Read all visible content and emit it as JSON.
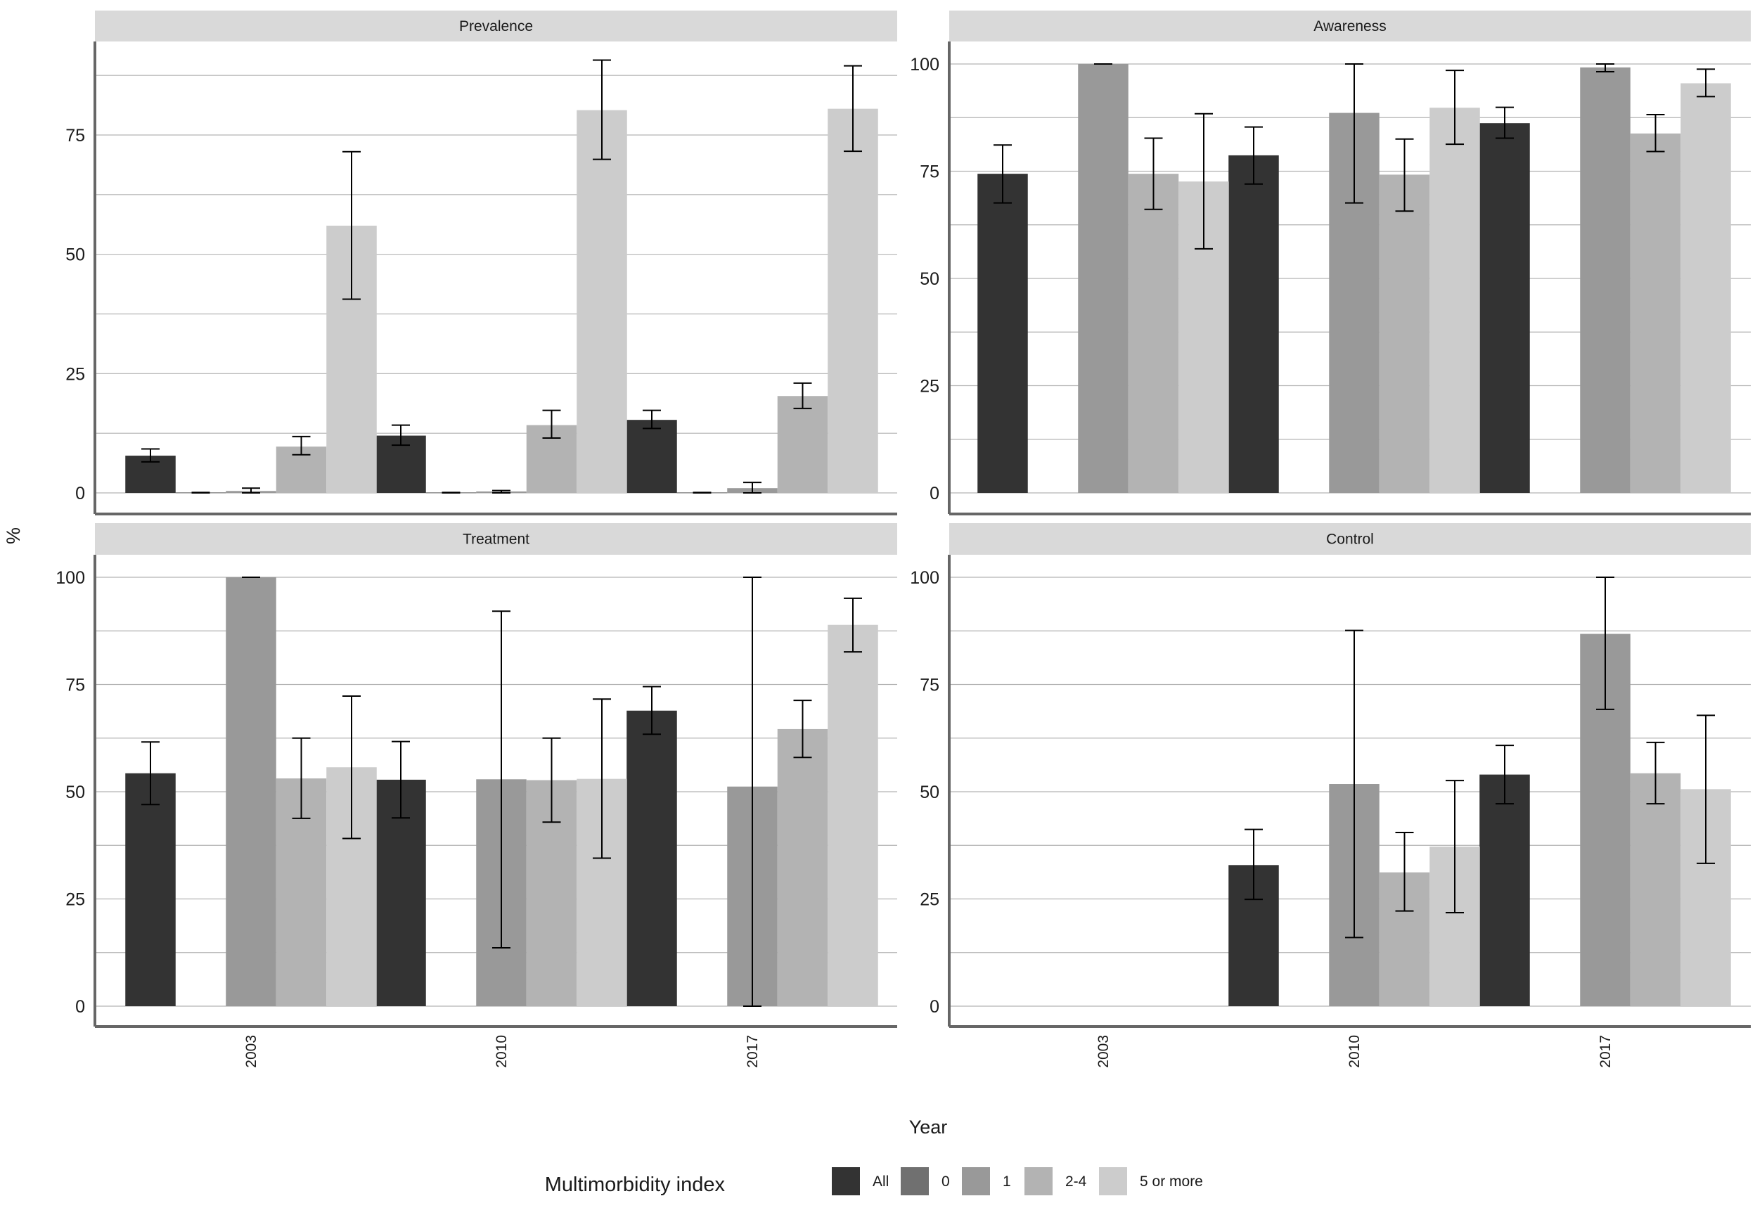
{
  "chart_data": [
    {
      "type": "bar",
      "title": "Prevalence",
      "categories": [
        "2003",
        "2010",
        "2017"
      ],
      "ylim": [
        0,
        95
      ],
      "yticks": [
        0,
        25,
        50,
        75
      ],
      "series": [
        {
          "name": "All",
          "values": [
            7.8,
            12.0,
            15.3
          ],
          "ci_low": [
            6.5,
            10.0,
            13.5
          ],
          "ci_high": [
            9.2,
            14.2,
            17.3
          ]
        },
        {
          "name": "0",
          "values": [
            0.1,
            0.1,
            0.1
          ],
          "ci_low": [
            0,
            0,
            0
          ],
          "ci_high": [
            0.1,
            0.1,
            0.1
          ]
        },
        {
          "name": "1",
          "values": [
            0.4,
            0.3,
            1.0
          ],
          "ci_low": [
            0,
            0,
            0
          ],
          "ci_high": [
            1.0,
            0.5,
            2.2
          ]
        },
        {
          "name": "2-4",
          "values": [
            9.7,
            14.2,
            20.3
          ],
          "ci_low": [
            8.0,
            11.5,
            17.7
          ],
          "ci_high": [
            11.8,
            17.3,
            23.0
          ]
        },
        {
          "name": "5 or more",
          "values": [
            56.0,
            80.2,
            80.5
          ],
          "ci_low": [
            40.6,
            69.9,
            71.6
          ],
          "ci_high": [
            71.5,
            90.7,
            89.5
          ]
        }
      ]
    },
    {
      "type": "bar",
      "title": "Awareness",
      "categories": [
        "2003",
        "2010",
        "2017"
      ],
      "ylim": [
        0,
        100
      ],
      "yticks": [
        0,
        25,
        50,
        75,
        100
      ],
      "series": [
        {
          "name": "All",
          "values": [
            74.4,
            78.7,
            86.2
          ],
          "ci_low": [
            67.6,
            72.0,
            82.7
          ],
          "ci_high": [
            81.1,
            85.3,
            89.9
          ]
        },
        {
          "name": "0",
          "values": [
            null,
            null,
            null
          ],
          "ci_low": [
            null,
            null,
            null
          ],
          "ci_high": [
            null,
            null,
            null
          ]
        },
        {
          "name": "1",
          "values": [
            100,
            88.6,
            99.2
          ],
          "ci_low": [
            100,
            67.6,
            98.2
          ],
          "ci_high": [
            100,
            100,
            100
          ]
        },
        {
          "name": "2-4",
          "values": [
            74.4,
            74.2,
            83.8
          ],
          "ci_low": [
            66.1,
            65.7,
            79.6
          ],
          "ci_high": [
            82.7,
            82.5,
            88.2
          ]
        },
        {
          "name": "5 or more",
          "values": [
            72.6,
            89.8,
            95.5
          ],
          "ci_low": [
            56.9,
            81.3,
            92.4
          ],
          "ci_high": [
            88.4,
            98.5,
            98.8
          ]
        }
      ]
    },
    {
      "type": "bar",
      "title": "Treatment",
      "categories": [
        "2003",
        "2010",
        "2017"
      ],
      "ylim": [
        0,
        100
      ],
      "yticks": [
        0,
        25,
        50,
        75,
        100
      ],
      "series": [
        {
          "name": "All",
          "values": [
            54.3,
            52.8,
            68.9
          ],
          "ci_low": [
            47.0,
            43.9,
            63.4
          ],
          "ci_high": [
            61.6,
            61.7,
            74.5
          ]
        },
        {
          "name": "0",
          "values": [
            null,
            null,
            null
          ],
          "ci_low": [
            null,
            null,
            null
          ],
          "ci_high": [
            null,
            null,
            null
          ]
        },
        {
          "name": "1",
          "values": [
            100,
            52.9,
            51.2
          ],
          "ci_low": [
            100,
            13.6,
            0
          ],
          "ci_high": [
            100,
            92.1,
            100
          ]
        },
        {
          "name": "2-4",
          "values": [
            53.1,
            52.7,
            64.6
          ],
          "ci_low": [
            43.8,
            42.9,
            58.0
          ],
          "ci_high": [
            62.5,
            62.5,
            71.3
          ]
        },
        {
          "name": "5 or more",
          "values": [
            55.7,
            53.0,
            88.9
          ],
          "ci_low": [
            39.1,
            34.5,
            82.6
          ],
          "ci_high": [
            72.3,
            71.6,
            95.1
          ]
        }
      ]
    },
    {
      "type": "bar",
      "title": "Control",
      "categories": [
        "2003",
        "2010",
        "2017"
      ],
      "ylim": [
        0,
        100
      ],
      "yticks": [
        0,
        25,
        50,
        75,
        100
      ],
      "series": [
        {
          "name": "All",
          "values": [
            null,
            32.9,
            54.0
          ],
          "ci_low": [
            null,
            24.9,
            47.2
          ],
          "ci_high": [
            null,
            41.2,
            60.8
          ]
        },
        {
          "name": "0",
          "values": [
            null,
            null,
            null
          ],
          "ci_low": [
            null,
            null,
            null
          ],
          "ci_high": [
            null,
            null,
            null
          ]
        },
        {
          "name": "1",
          "values": [
            null,
            51.8,
            86.8
          ],
          "ci_low": [
            null,
            16.0,
            69.2
          ],
          "ci_high": [
            null,
            87.6,
            100
          ]
        },
        {
          "name": "2-4",
          "values": [
            null,
            31.2,
            54.3
          ],
          "ci_low": [
            null,
            22.2,
            47.2
          ],
          "ci_high": [
            null,
            40.5,
            61.5
          ]
        },
        {
          "name": "5 or more",
          "values": [
            null,
            37.2,
            50.6
          ],
          "ci_low": [
            null,
            21.8,
            33.3
          ],
          "ci_high": [
            null,
            52.6,
            67.8
          ]
        }
      ]
    }
  ],
  "axes": {
    "xlabel": "Year",
    "ylabel": "%"
  },
  "legend": {
    "title": "Multimorbidity index",
    "placement": "bottom",
    "items": [
      {
        "label": "All",
        "color": "#333333"
      },
      {
        "label": "0",
        "color": "#707070"
      },
      {
        "label": "1",
        "color": "#999999"
      },
      {
        "label": "2-4",
        "color": "#b3b3b3"
      },
      {
        "label": "5 or more",
        "color": "#cccccc"
      }
    ]
  },
  "colors": {
    "strip": "#d9d9d9",
    "grid": "#b3b3b3",
    "axis": "#666666",
    "errorbar": "#000000"
  }
}
